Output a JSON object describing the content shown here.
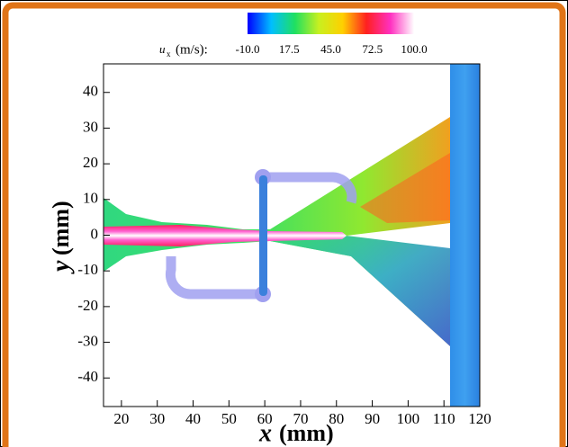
{
  "chart_data": {
    "type": "contour",
    "colorbar": {
      "symbol": "u",
      "subscript": "x",
      "unit": "(m/s):",
      "lim": [
        -10,
        100
      ],
      "ticks": [
        {
          "value": -10,
          "label": "-10.0"
        },
        {
          "value": 17.5,
          "label": "17.5"
        },
        {
          "value": 45,
          "label": "45.0"
        },
        {
          "value": 72.5,
          "label": "72.5"
        },
        {
          "value": 100,
          "label": "100.0"
        }
      ],
      "colors": [
        "#0000ff",
        "#00bfff",
        "#20e060",
        "#c8f020",
        "#ffd000",
        "#ff2020",
        "#ff30c0",
        "#ffffff"
      ]
    },
    "xlabel_var": "x",
    "xlabel_unit": "(mm)",
    "ylabel_var": "y",
    "ylabel_unit": "(mm)",
    "xlim": [
      15,
      120
    ],
    "ylim": [
      -48,
      48
    ],
    "xticks": [
      20,
      30,
      40,
      50,
      60,
      70,
      80,
      90,
      100,
      110,
      120
    ],
    "yticks": [
      -40,
      -30,
      -20,
      -10,
      0,
      10,
      20,
      30,
      40
    ]
  }
}
